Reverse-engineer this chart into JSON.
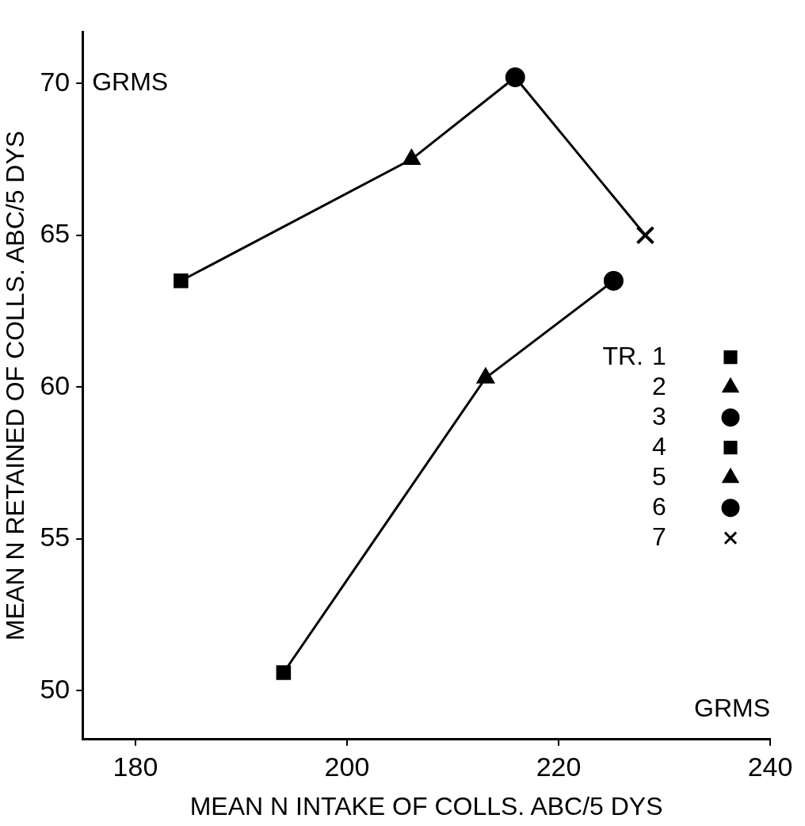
{
  "chart_data": {
    "type": "scatter",
    "xlabel": "MEAN N INTAKE OF COLLS. ABC/5 DYS",
    "ylabel": "MEAN N RETAINED OF COLLS. ABC/5 DYS",
    "legend_title": "TR.",
    "annotations": [
      "GRMS",
      "GRMS"
    ],
    "xlim": [
      175,
      240
    ],
    "xticks": [
      180,
      200,
      220,
      240
    ],
    "ylim": [
      48.4,
      71.7
    ],
    "yticks": [
      50,
      55,
      60,
      65,
      70
    ],
    "grid": false,
    "legend": "right",
    "series": [
      {
        "type": "line",
        "color": "#000000",
        "marker": "none",
        "x": [
          194.0,
          213.1,
          225.2
        ],
        "values": [
          50.6,
          60.3,
          63.5
        ]
      },
      {
        "type": "line",
        "color": "#000000",
        "marker": "none",
        "x": [
          184.3,
          206.1,
          215.9,
          228.2
        ],
        "values": [
          63.5,
          67.5,
          70.2,
          65.0
        ]
      },
      {
        "name": "1",
        "color": "#000000",
        "marker": "square",
        "x": [
          194.0
        ],
        "values": [
          50.6
        ]
      },
      {
        "name": "2",
        "color": "#000000",
        "marker": "triangle",
        "x": [
          213.1
        ],
        "values": [
          60.3
        ]
      },
      {
        "name": "3",
        "color": "#000000",
        "marker": "circle",
        "x": [
          225.2
        ],
        "values": [
          63.5
        ]
      },
      {
        "name": "4",
        "color": "#000000",
        "marker": "square",
        "x": [
          184.3
        ],
        "values": [
          63.5
        ]
      },
      {
        "name": "5",
        "color": "#000000",
        "marker": "triangle",
        "x": [
          206.1
        ],
        "values": [
          67.5
        ]
      },
      {
        "name": "6",
        "color": "#000000",
        "marker": "circle",
        "x": [
          215.9
        ],
        "values": [
          70.2
        ]
      },
      {
        "name": "7",
        "color": "#000000",
        "marker": "cross",
        "x": [
          228.2
        ],
        "values": [
          65.0
        ]
      }
    ]
  }
}
